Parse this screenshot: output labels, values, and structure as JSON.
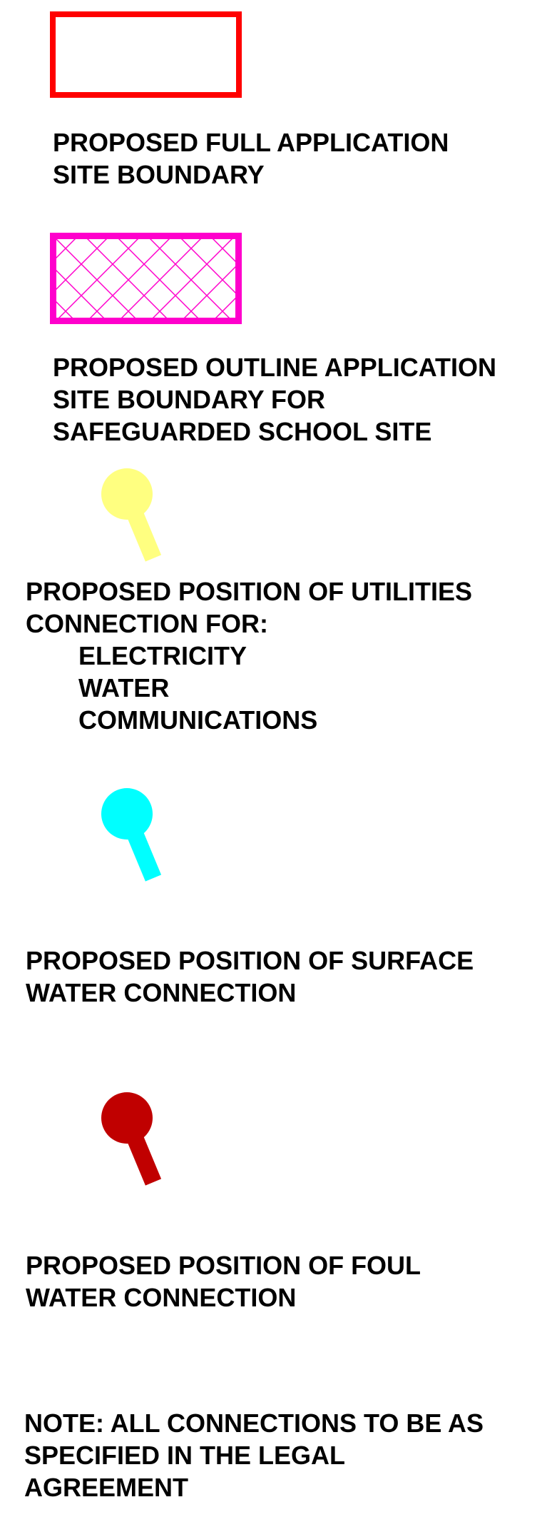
{
  "legend": {
    "full_application": {
      "color": "#ff0000",
      "lines": [
        "PROPOSED FULL APPLICATION",
        "SITE BOUNDARY"
      ]
    },
    "outline_application": {
      "color": "#ff00cc",
      "lines": [
        "PROPOSED OUTLINE APPLICATION",
        "SITE BOUNDARY FOR",
        "SAFEGUARDED SCHOOL SITE"
      ]
    },
    "utilities_connection": {
      "color": "#ffff80",
      "lines": [
        "PROPOSED POSITION OF UTILITIES",
        "CONNECTION FOR:"
      ],
      "items": [
        "ELECTRICITY",
        "WATER",
        "COMMUNICATIONS"
      ]
    },
    "surface_water_connection": {
      "color": "#00ffff",
      "lines": [
        "PROPOSED POSITION OF SURFACE",
        "WATER CONNECTION"
      ]
    },
    "foul_water_connection": {
      "color": "#c00000",
      "lines": [
        "PROPOSED POSITION OF FOUL",
        "WATER CONNECTION"
      ]
    }
  },
  "note": {
    "lines": [
      "NOTE: ALL CONNECTIONS TO BE AS",
      "SPECIFIED IN THE LEGAL",
      "AGREEMENT"
    ]
  }
}
